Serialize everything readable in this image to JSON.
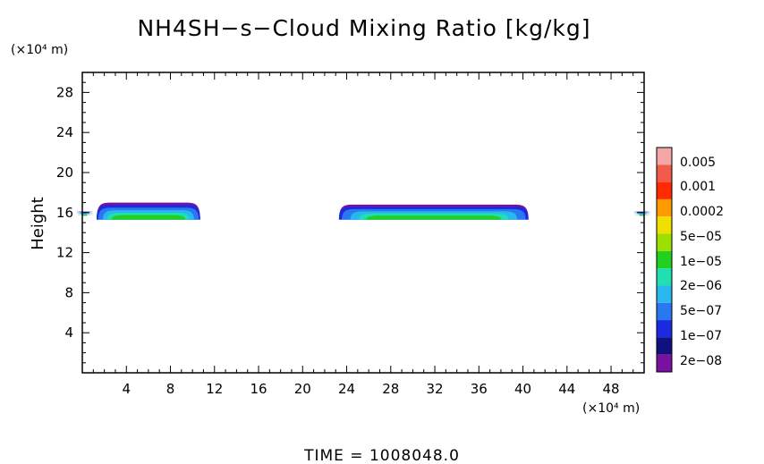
{
  "chart_data": {
    "type": "heatmap",
    "title": "NH4SH−s−Cloud Mixing Ratio [kg/kg]",
    "ylabel": "Height",
    "xunit": "(×10⁴ m)",
    "yunit": "(×10⁴ m)",
    "footer": "TIME  =  1008048.0",
    "xlim": [
      0,
      51
    ],
    "ylim": [
      0,
      30
    ],
    "xticks": [
      "4",
      "8",
      "12",
      "16",
      "20",
      "24",
      "28",
      "32",
      "36",
      "40",
      "44",
      "48"
    ],
    "yticks": [
      "4",
      "8",
      "12",
      "16",
      "20",
      "24",
      "28"
    ],
    "colorbar": {
      "labels": [
        "0.005",
        "0.001",
        "0.0002",
        "5e−05",
        "1e−05",
        "2e−06",
        "5e−07",
        "1e−07",
        "2e−08"
      ],
      "colors": [
        "#f4a6a6",
        "#f25a4a",
        "#ff2a00",
        "#ff9a00",
        "#f0e000",
        "#9ae000",
        "#22d020",
        "#20e0b0",
        "#28b8f0",
        "#2a78f0",
        "#1a2ae0",
        "#101080",
        "#7a10a0"
      ]
    },
    "clouds": [
      {
        "x_start": 1.3,
        "x_end": 10.7,
        "base_height": 15.3,
        "top_height": 17.0
      },
      {
        "x_start": 23.3,
        "x_end": 40.5,
        "base_height": 15.3,
        "top_height": 16.8
      },
      {
        "x_start": 0,
        "x_end": 0.4,
        "base_height": 15.7,
        "top_height": 16.1
      },
      {
        "x_start": 50.6,
        "x_end": 51,
        "base_height": 15.7,
        "top_height": 16.1
      }
    ]
  }
}
